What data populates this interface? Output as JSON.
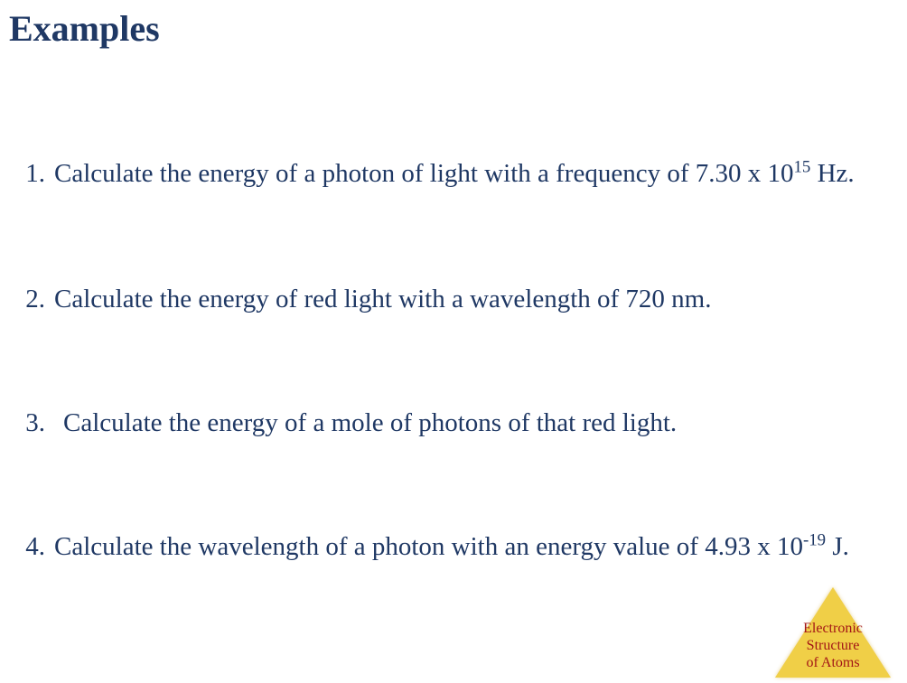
{
  "title": "Examples",
  "title_style": {
    "color": "#1f3864",
    "fontsize_pt": 30,
    "font_weight": "bold"
  },
  "text_color": "#1f3864",
  "body_fontsize_pt": 22,
  "background_color": "#ffffff",
  "items": [
    {
      "pre": "Calculate the energy of a photon of light with a frequency of 7.30 x 10",
      "sup": "15",
      "post": " Hz."
    },
    {
      "pre": "Calculate the energy of red light with a wavelength of 720 nm.",
      "sup": "",
      "post": ""
    },
    {
      "pre": "Calculate the energy of a mole of photons of that red light.",
      "sup": "",
      "post": ""
    },
    {
      "pre": "Calculate the wavelength of a photon with an energy value of 4.93 x 10",
      "sup": "-19",
      "post": " J."
    }
  ],
  "badge": {
    "line1": "Electronic",
    "line2": "Structure",
    "line3": "of Atoms",
    "triangle_color": "#e8b923",
    "text_color": "#a31616",
    "fontsize_pt": 12
  }
}
